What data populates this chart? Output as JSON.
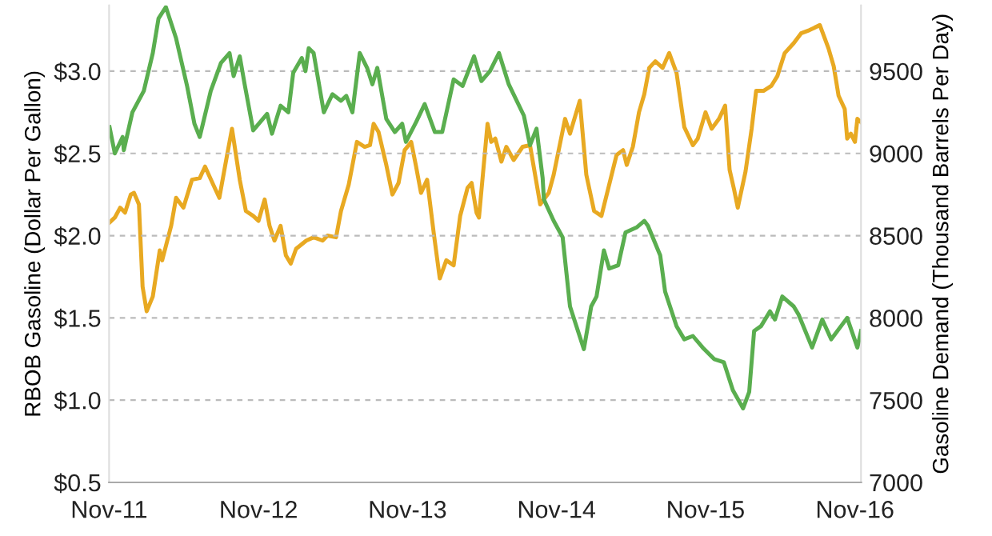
{
  "chart_data": {
    "type": "line",
    "xlabel": null,
    "ylabel": "RBOB Gasoline (Dollar Per Gallon)",
    "y2label": "Gasoline Demand (Thousand Barrels Per Day)",
    "xlim": [
      "2011-11-01",
      "2016-11-16"
    ],
    "xticks": [
      {
        "value": "2011-11-01",
        "label": "Nov-11"
      },
      {
        "value": "2012-11-01",
        "label": "Nov-12"
      },
      {
        "value": "2013-11-01",
        "label": "Nov-13"
      },
      {
        "value": "2014-11-01",
        "label": "Nov-14"
      },
      {
        "value": "2015-11-01",
        "label": "Nov-15"
      },
      {
        "value": "2016-11-01",
        "label": "Nov-16"
      }
    ],
    "ylim": [
      0.5,
      3.4
    ],
    "yticks": [
      {
        "value": 0.5,
        "label": "$0.5"
      },
      {
        "value": 1.0,
        "label": "$1.0"
      },
      {
        "value": 1.5,
        "label": "$1.5"
      },
      {
        "value": 2.0,
        "label": "$2.0"
      },
      {
        "value": 2.5,
        "label": "$2.5"
      },
      {
        "value": 3.0,
        "label": "$3.0"
      }
    ],
    "y2lim": [
      7000,
      9900
    ],
    "y2ticks": [
      7000,
      7500,
      8000,
      8500,
      9000,
      9500
    ],
    "grid": "y",
    "marker": "none",
    "line_style": "solid",
    "series": [
      {
        "color": "#5aae4f",
        "axis": "y",
        "x": [
          "2011-11-02",
          "2011-11-15",
          "2011-12-04",
          "2011-12-07",
          "2011-12-28",
          "2012-01-25",
          "2012-02-16",
          "2012-03-01",
          "2012-03-19",
          "2012-04-13",
          "2012-05-10",
          "2012-05-28",
          "2012-06-10",
          "2012-07-07",
          "2012-08-01",
          "2012-08-22",
          "2012-09-01",
          "2012-09-16",
          "2012-09-28",
          "2012-10-19",
          "2012-11-22",
          "2012-12-04",
          "2012-12-25",
          "2013-01-13",
          "2013-01-25",
          "2013-02-15",
          "2013-02-24",
          "2013-03-04",
          "2013-03-16",
          "2013-04-10",
          "2013-05-01",
          "2013-05-22",
          "2013-06-04",
          "2013-06-19",
          "2013-07-07",
          "2013-07-25",
          "2013-08-07",
          "2013-08-19",
          "2013-09-10",
          "2013-10-01",
          "2013-10-19",
          "2013-10-28",
          "2013-11-22",
          "2013-12-13",
          "2014-01-07",
          "2014-01-25",
          "2014-02-22",
          "2014-03-16",
          "2014-04-13",
          "2014-05-01",
          "2014-05-22",
          "2014-06-13",
          "2014-07-07",
          "2014-08-13",
          "2014-08-28",
          "2014-09-13",
          "2014-09-28",
          "2014-10-01",
          "2014-10-25",
          "2014-11-16",
          "2014-12-04",
          "2015-01-07",
          "2015-01-25",
          "2015-02-07",
          "2015-02-25",
          "2015-03-10",
          "2015-04-01",
          "2015-04-19",
          "2015-05-16",
          "2015-06-04",
          "2015-06-13",
          "2015-07-13",
          "2015-07-25",
          "2015-08-22",
          "2015-09-10",
          "2015-10-01",
          "2015-10-25",
          "2015-11-22",
          "2015-12-16",
          "2016-01-07",
          "2016-02-01",
          "2016-02-16",
          "2016-02-28",
          "2016-03-16",
          "2016-04-07",
          "2016-04-19",
          "2016-05-07",
          "2016-06-04",
          "2016-06-16",
          "2016-07-19",
          "2016-08-13",
          "2016-09-04",
          "2016-10-13",
          "2016-11-07",
          "2016-11-16"
        ],
        "values": [
          2.66,
          2.5,
          2.6,
          2.52,
          2.75,
          2.88,
          3.11,
          3.32,
          3.39,
          3.2,
          2.91,
          2.68,
          2.6,
          2.88,
          3.05,
          3.11,
          2.97,
          3.09,
          2.92,
          2.64,
          2.74,
          2.62,
          2.79,
          2.75,
          2.99,
          3.08,
          3.0,
          3.14,
          3.11,
          2.75,
          2.86,
          2.82,
          2.85,
          2.75,
          3.11,
          3.02,
          2.92,
          3.02,
          2.71,
          2.63,
          2.68,
          2.57,
          2.69,
          2.8,
          2.63,
          2.63,
          2.95,
          2.91,
          3.09,
          2.94,
          3.0,
          3.11,
          2.92,
          2.73,
          2.55,
          2.65,
          2.35,
          2.22,
          2.09,
          1.99,
          1.57,
          1.31,
          1.57,
          1.63,
          1.91,
          1.8,
          1.82,
          2.02,
          2.05,
          2.09,
          2.06,
          1.88,
          1.66,
          1.45,
          1.37,
          1.39,
          1.32,
          1.25,
          1.23,
          1.06,
          0.95,
          1.05,
          1.42,
          1.45,
          1.54,
          1.49,
          1.63,
          1.57,
          1.52,
          1.32,
          1.49,
          1.37,
          1.5,
          1.32,
          1.42
        ]
      },
      {
        "color": "#e8a922",
        "axis": "y2",
        "x": [
          "2011-11-02",
          "2011-11-15",
          "2011-11-28",
          "2011-12-10",
          "2011-12-24",
          "2012-01-01",
          "2012-01-13",
          "2012-01-22",
          "2012-02-01",
          "2012-02-16",
          "2012-03-04",
          "2012-03-10",
          "2012-04-01",
          "2012-04-13",
          "2012-05-01",
          "2012-05-22",
          "2012-06-10",
          "2012-06-23",
          "2012-07-13",
          "2012-07-28",
          "2012-08-16",
          "2012-08-28",
          "2012-09-16",
          "2012-10-01",
          "2012-10-19",
          "2012-11-01",
          "2012-11-16",
          "2012-11-28",
          "2012-12-10",
          "2012-12-25",
          "2013-01-07",
          "2013-01-19",
          "2013-02-01",
          "2013-02-26",
          "2013-03-16",
          "2013-04-07",
          "2013-04-19",
          "2013-05-10",
          "2013-05-22",
          "2013-06-10",
          "2013-06-30",
          "2013-07-19",
          "2013-08-01",
          "2013-08-10",
          "2013-08-22",
          "2013-09-10",
          "2013-09-25",
          "2013-10-10",
          "2013-10-25",
          "2013-11-10",
          "2013-11-22",
          "2013-12-04",
          "2013-12-19",
          "2014-01-04",
          "2014-01-19",
          "2014-02-04",
          "2014-02-22",
          "2014-03-10",
          "2014-03-28",
          "2014-04-07",
          "2014-04-19",
          "2014-04-25",
          "2014-05-16",
          "2014-05-25",
          "2014-06-04",
          "2014-06-19",
          "2014-07-01",
          "2014-07-19",
          "2014-08-10",
          "2014-08-28",
          "2014-09-22",
          "2014-10-13",
          "2014-10-25",
          "2014-11-22",
          "2014-12-04",
          "2014-12-28",
          "2015-01-13",
          "2015-02-01",
          "2015-02-19",
          "2015-03-10",
          "2015-03-28",
          "2015-04-13",
          "2015-04-22",
          "2015-05-07",
          "2015-05-22",
          "2015-06-04",
          "2015-06-16",
          "2015-07-01",
          "2015-07-19",
          "2015-08-04",
          "2015-08-22",
          "2015-09-10",
          "2015-10-01",
          "2015-10-13",
          "2015-11-01",
          "2015-11-16",
          "2015-12-04",
          "2015-12-19",
          "2015-12-30",
          "2016-01-10",
          "2016-01-19",
          "2016-02-07",
          "2016-02-22",
          "2016-03-04",
          "2016-03-22",
          "2016-04-10",
          "2016-04-25",
          "2016-05-13",
          "2016-06-04",
          "2016-06-22",
          "2016-07-13",
          "2016-08-07",
          "2016-08-28",
          "2016-09-10",
          "2016-09-22",
          "2016-10-07",
          "2016-10-13",
          "2016-10-22",
          "2016-11-01",
          "2016-11-07",
          "2016-11-16"
        ],
        "values": [
          8580,
          8610,
          8670,
          8640,
          8750,
          8760,
          8690,
          8190,
          8040,
          8130,
          8410,
          8350,
          8560,
          8730,
          8670,
          8840,
          8850,
          8920,
          8810,
          8730,
          8990,
          9150,
          8840,
          8650,
          8620,
          8590,
          8720,
          8560,
          8470,
          8560,
          8380,
          8330,
          8420,
          8470,
          8490,
          8470,
          8500,
          8490,
          8650,
          8810,
          9070,
          9040,
          9050,
          9180,
          9130,
          8930,
          8750,
          8820,
          9020,
          9070,
          8920,
          8760,
          8840,
          8520,
          8240,
          8350,
          8320,
          8620,
          8790,
          8820,
          8640,
          8610,
          9180,
          9070,
          9090,
          8950,
          9040,
          8960,
          9040,
          9050,
          8690,
          8760,
          8870,
          9210,
          9120,
          9320,
          8870,
          8650,
          8620,
          8810,
          8990,
          9020,
          8930,
          9040,
          9250,
          9360,
          9520,
          9560,
          9520,
          9610,
          9490,
          9160,
          9050,
          9090,
          9250,
          9150,
          9210,
          9290,
          8900,
          8780,
          8670,
          8890,
          9150,
          9380,
          9380,
          9410,
          9470,
          9610,
          9670,
          9730,
          9750,
          9780,
          9640,
          9530,
          9350,
          9270,
          9090,
          9120,
          9070,
          9210,
          9190
        ]
      }
    ]
  }
}
